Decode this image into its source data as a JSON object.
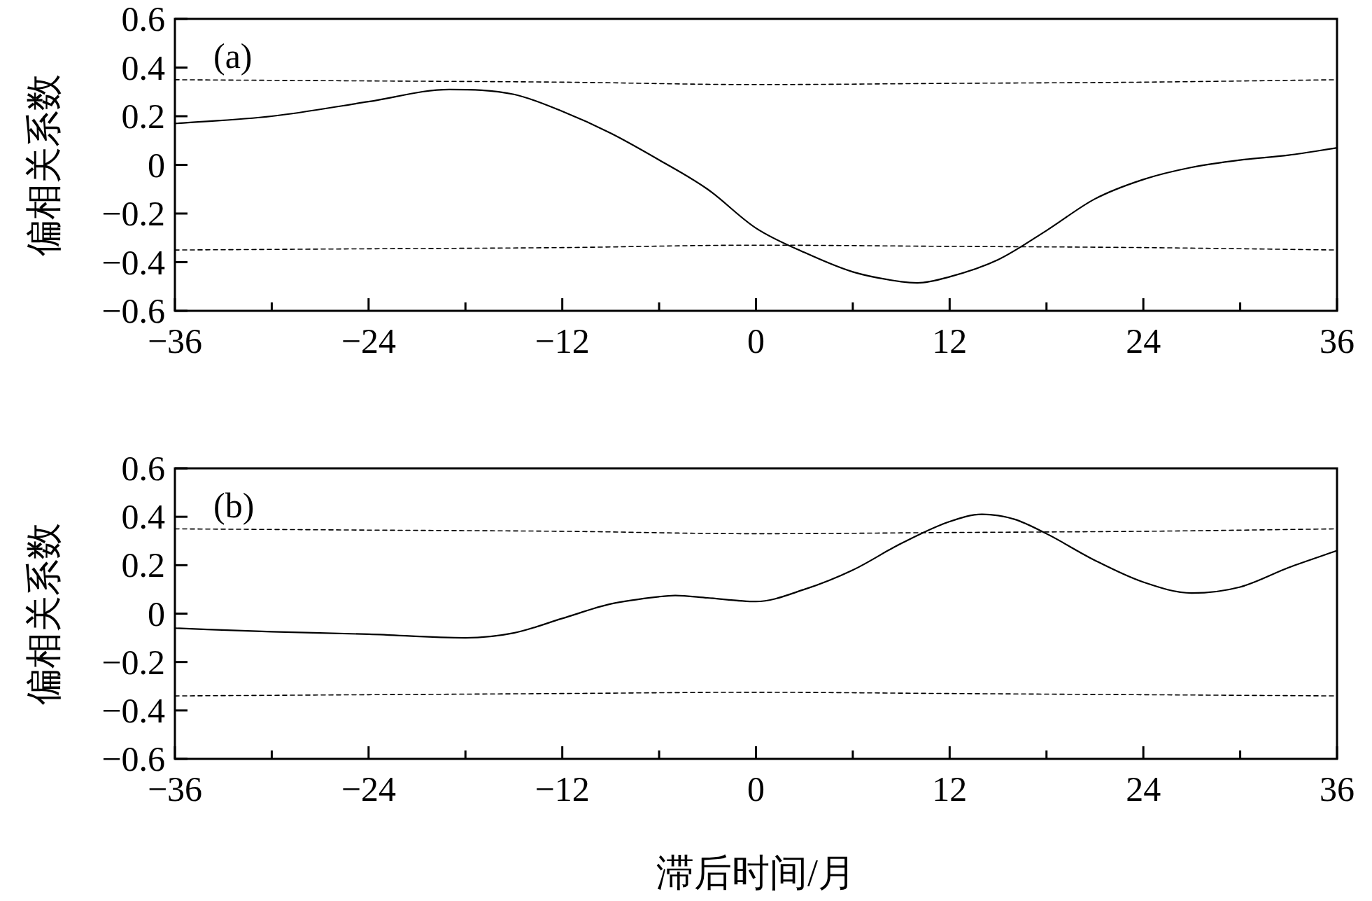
{
  "chart_data": [
    {
      "type": "line",
      "annotations": [
        "(a)"
      ],
      "ylabel": "偏相关系数",
      "xlim": [
        -36,
        36
      ],
      "ylim": [
        -0.6,
        0.6
      ],
      "xticks": [
        {
          "value": -36,
          "label": "−36"
        },
        {
          "value": -30,
          "label": null
        },
        {
          "value": -24,
          "label": "−24"
        },
        {
          "value": -18,
          "label": null
        },
        {
          "value": -12,
          "label": "−12"
        },
        {
          "value": -6,
          "label": null
        },
        0,
        {
          "value": 6,
          "label": null
        },
        12,
        {
          "value": 18,
          "label": null
        },
        24,
        {
          "value": 30,
          "label": null
        },
        36
      ],
      "yticks": [
        {
          "value": -0.6,
          "label": "−0.6"
        },
        {
          "value": -0.4,
          "label": "−0.4"
        },
        {
          "value": -0.2,
          "label": "−0.2"
        },
        0,
        0.2,
        0.4,
        0.6
      ],
      "series": [
        {
          "color": "#000000",
          "line_style": "solid",
          "x": [
            -36,
            -30,
            -24,
            -19,
            -15,
            -12,
            -9,
            -6,
            -3,
            0,
            3,
            6,
            9,
            10,
            12,
            15,
            18,
            21,
            24,
            27,
            30,
            33,
            36
          ],
          "values": [
            0.17,
            0.2,
            0.26,
            0.31,
            0.29,
            0.22,
            0.13,
            0.02,
            -0.1,
            -0.26,
            -0.36,
            -0.44,
            -0.48,
            -0.485,
            -0.46,
            -0.39,
            -0.27,
            -0.14,
            -0.06,
            -0.01,
            0.02,
            0.04,
            0.07
          ]
        },
        {
          "color": "#000000",
          "line_style": "dashed",
          "x": [
            -36,
            -24,
            -12,
            0,
            12,
            24,
            36
          ],
          "values": [
            0.35,
            0.345,
            0.34,
            0.33,
            0.335,
            0.34,
            0.35
          ]
        },
        {
          "color": "#000000",
          "line_style": "dashed",
          "x": [
            -36,
            -24,
            -12,
            0,
            12,
            24,
            36
          ],
          "values": [
            -0.35,
            -0.345,
            -0.34,
            -0.33,
            -0.335,
            -0.34,
            -0.35
          ]
        }
      ]
    },
    {
      "type": "line",
      "annotations": [
        "(b)"
      ],
      "ylabel": "偏相关系数",
      "xlabel": "滞后时间/月",
      "xlim": [
        -36,
        36
      ],
      "ylim": [
        -0.6,
        0.6
      ],
      "xticks": [
        {
          "value": -36,
          "label": "−36"
        },
        {
          "value": -30,
          "label": null
        },
        {
          "value": -24,
          "label": "−24"
        },
        {
          "value": -18,
          "label": null
        },
        {
          "value": -12,
          "label": "−12"
        },
        {
          "value": -6,
          "label": null
        },
        0,
        {
          "value": 6,
          "label": null
        },
        12,
        {
          "value": 18,
          "label": null
        },
        24,
        {
          "value": 30,
          "label": null
        },
        36
      ],
      "yticks": [
        {
          "value": -0.6,
          "label": "−0.6"
        },
        {
          "value": -0.4,
          "label": "−0.4"
        },
        {
          "value": -0.2,
          "label": "−0.2"
        },
        0,
        0.2,
        0.4,
        0.6
      ],
      "series": [
        {
          "color": "#000000",
          "line_style": "solid",
          "x": [
            -36,
            -30,
            -24,
            -18,
            -15,
            -12,
            -9,
            -6,
            -5,
            -3,
            0,
            3,
            6,
            9,
            12,
            14,
            16,
            18,
            21,
            24,
            27,
            30,
            33,
            36
          ],
          "values": [
            -0.06,
            -0.075,
            -0.085,
            -0.1,
            -0.08,
            -0.02,
            0.04,
            0.07,
            0.075,
            0.065,
            0.05,
            0.1,
            0.18,
            0.29,
            0.38,
            0.41,
            0.39,
            0.33,
            0.22,
            0.13,
            0.085,
            0.11,
            0.19,
            0.26
          ]
        },
        {
          "color": "#000000",
          "line_style": "dashed",
          "x": [
            -36,
            -24,
            -12,
            0,
            12,
            24,
            36
          ],
          "values": [
            0.35,
            0.345,
            0.34,
            0.33,
            0.335,
            0.34,
            0.35
          ]
        },
        {
          "color": "#000000",
          "line_style": "dashed",
          "x": [
            -36,
            -24,
            -12,
            0,
            12,
            24,
            36
          ],
          "values": [
            -0.34,
            -0.335,
            -0.33,
            -0.325,
            -0.33,
            -0.335,
            -0.34
          ]
        }
      ]
    }
  ]
}
